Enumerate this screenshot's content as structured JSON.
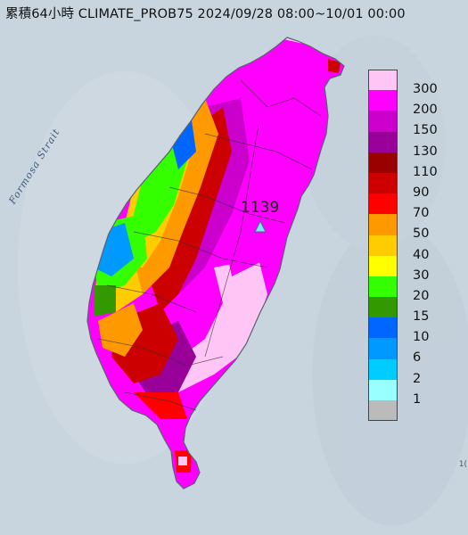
{
  "title": "累積64小時 CLIMATE_PROB75 2024/09/28 08:00~10/01 00:00",
  "labels": {
    "strait": "Formosa Strait",
    "station_value": "1139",
    "edge_mark": "1("
  },
  "map": {
    "sea_color": "#c9d5de",
    "coast_color": "#556270"
  },
  "legend": {
    "items": [
      {
        "label": "300",
        "color": "#ffc6f5"
      },
      {
        "label": "200",
        "color": "#ff00ff"
      },
      {
        "label": "150",
        "color": "#cc00cc"
      },
      {
        "label": "130",
        "color": "#990099"
      },
      {
        "label": "110",
        "color": "#990000"
      },
      {
        "label": "90",
        "color": "#cc0000"
      },
      {
        "label": "70",
        "color": "#ff0000"
      },
      {
        "label": "50",
        "color": "#ff9900"
      },
      {
        "label": "40",
        "color": "#ffcc00"
      },
      {
        "label": "30",
        "color": "#ffff00"
      },
      {
        "label": "20",
        "color": "#33ff00"
      },
      {
        "label": "15",
        "color": "#339900"
      },
      {
        "label": "10",
        "color": "#0066ff"
      },
      {
        "label": "6",
        "color": "#0099ff"
      },
      {
        "label": "2",
        "color": "#00ccff"
      },
      {
        "label": "1",
        "color": "#99ffff"
      },
      {
        "label": "",
        "color": "#bbbbbb"
      }
    ]
  }
}
